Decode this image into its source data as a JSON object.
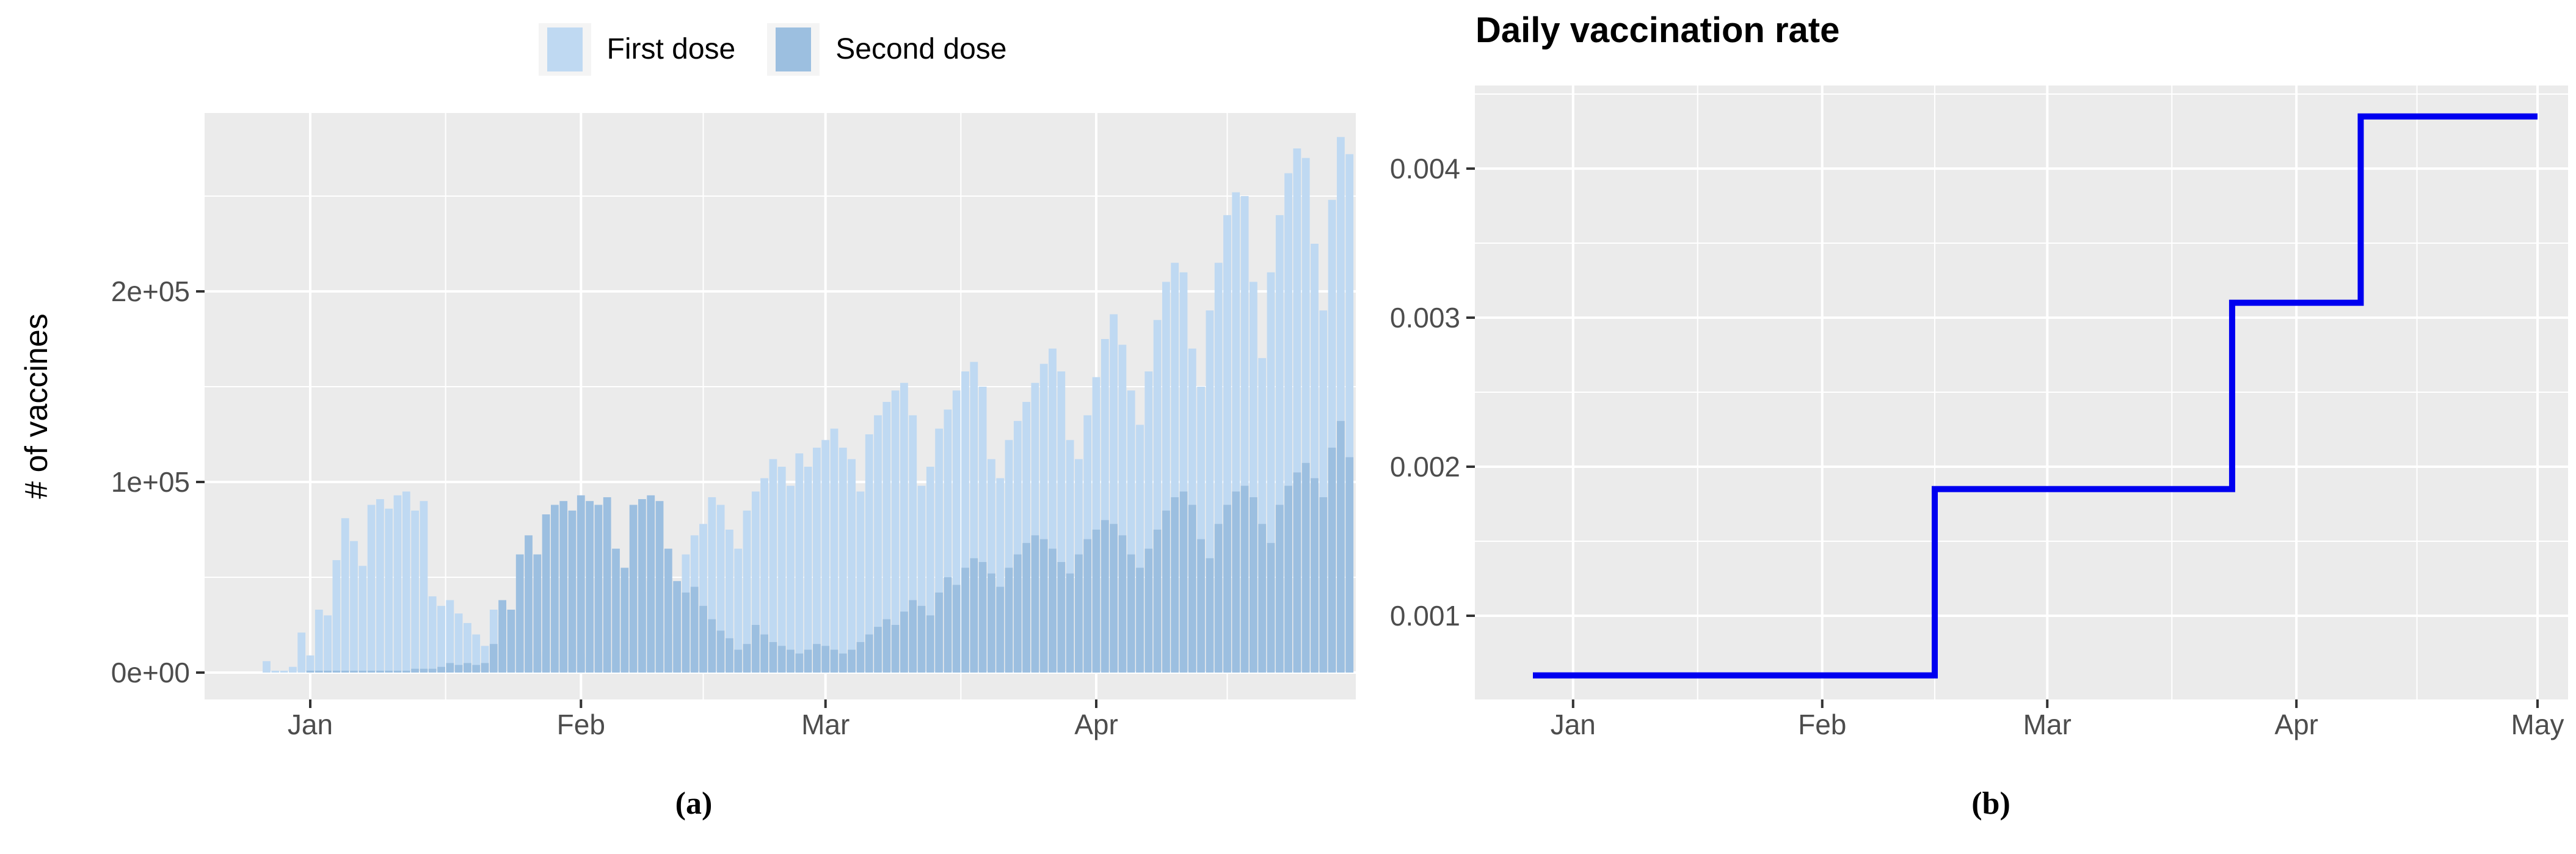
{
  "figure": {
    "caption_a": "(a)",
    "caption_b": "(b)"
  },
  "colors": {
    "first_dose": "#BFD9F2",
    "second_dose": "#9CBFE0",
    "rate_line": "#0000F0",
    "panel_bg": "#EBEBEB",
    "grid": "#FFFFFF",
    "axis_text": "#4D4D4D",
    "tick_mark": "#333333"
  },
  "chart_data": [
    {
      "type": "bar",
      "title": "",
      "xlabel": "",
      "ylabel": "# of vaccines",
      "x_start": "Dec 27",
      "bar_unit": "one bar per day",
      "legend_position": "top-center",
      "grid": true,
      "ylim": [
        0,
        293000
      ],
      "yticks": [
        {
          "label": "0e+00",
          "value": 0
        },
        {
          "label": "1e+05",
          "value": 100000
        },
        {
          "label": "2e+05",
          "value": 200000
        }
      ],
      "y_minor_values": [
        50000,
        150000,
        250000
      ],
      "xticks": [
        {
          "label": "Jan",
          "day": 5
        },
        {
          "label": "Feb",
          "day": 36
        },
        {
          "label": "Mar",
          "day": 64
        },
        {
          "label": "Apr",
          "day": 95
        }
      ],
      "x_minor_days": [
        20.5,
        50,
        79.5,
        110
      ],
      "legend": [
        {
          "label": "First dose",
          "color": "#BFD9F2"
        },
        {
          "label": "Second dose",
          "color": "#9CBFE0"
        }
      ],
      "series": [
        {
          "name": "First dose",
          "color": "#BFD9F2",
          "values": [
            6000,
            1000,
            1000,
            3000,
            21000,
            9000,
            33000,
            30000,
            59000,
            81000,
            69000,
            56000,
            88000,
            91000,
            86000,
            93000,
            95000,
            85000,
            90000,
            40000,
            35000,
            38000,
            31000,
            26000,
            20000,
            14000,
            33000,
            30000,
            22000,
            12000,
            10000,
            9000,
            11000,
            10000,
            12000,
            14000,
            10000,
            8000,
            12000,
            10000,
            8000,
            12000,
            15000,
            42000,
            48000,
            33000,
            20000,
            45000,
            62000,
            72000,
            78000,
            92000,
            88000,
            75000,
            65000,
            85000,
            95000,
            102000,
            112000,
            108000,
            98000,
            115000,
            108000,
            118000,
            122000,
            128000,
            118000,
            112000,
            95000,
            125000,
            135000,
            142000,
            148000,
            152000,
            135000,
            98000,
            108000,
            128000,
            138000,
            148000,
            158000,
            163000,
            150000,
            112000,
            102000,
            122000,
            132000,
            142000,
            152000,
            162000,
            170000,
            158000,
            122000,
            112000,
            135000,
            155000,
            175000,
            188000,
            172000,
            148000,
            130000,
            158000,
            185000,
            205000,
            215000,
            210000,
            170000,
            150000,
            190000,
            215000,
            240000,
            252000,
            250000,
            205000,
            165000,
            210000,
            240000,
            262000,
            275000,
            270000,
            225000,
            190000,
            248000,
            281000,
            272000
          ]
        },
        {
          "name": "Second dose",
          "color": "#9CBFE0",
          "values": [
            0,
            0,
            0,
            0,
            0,
            1000,
            1000,
            1000,
            1000,
            1000,
            1000,
            1000,
            1000,
            1000,
            1000,
            1000,
            1000,
            2000,
            2000,
            2000,
            3000,
            5000,
            4000,
            5000,
            4000,
            5000,
            15000,
            38000,
            33000,
            62000,
            72000,
            62000,
            83000,
            88000,
            90000,
            85000,
            93000,
            90000,
            88000,
            92000,
            65000,
            55000,
            88000,
            91000,
            93000,
            90000,
            65000,
            48000,
            42000,
            45000,
            35000,
            28000,
            22000,
            18000,
            12000,
            15000,
            25000,
            20000,
            16000,
            14000,
            12000,
            10000,
            12000,
            15000,
            14000,
            12000,
            10000,
            12000,
            16000,
            20000,
            24000,
            28000,
            25000,
            32000,
            38000,
            35000,
            30000,
            42000,
            50000,
            46000,
            55000,
            60000,
            58000,
            52000,
            45000,
            55000,
            62000,
            68000,
            72000,
            70000,
            65000,
            58000,
            52000,
            62000,
            70000,
            75000,
            80000,
            78000,
            72000,
            62000,
            55000,
            65000,
            75000,
            85000,
            92000,
            95000,
            88000,
            70000,
            60000,
            78000,
            88000,
            95000,
            98000,
            92000,
            78000,
            68000,
            88000,
            98000,
            105000,
            110000,
            102000,
            92000,
            118000,
            132000,
            113000
          ]
        }
      ]
    },
    {
      "type": "line",
      "line_style": "step",
      "title": "Daily vaccination rate",
      "xlabel": "",
      "ylabel": "",
      "x_start": "Dec 27",
      "grid": true,
      "ylim": [
        0.00044,
        0.00456
      ],
      "yticks": [
        {
          "label": "0.001",
          "value": 0.001
        },
        {
          "label": "0.002",
          "value": 0.002
        },
        {
          "label": "0.003",
          "value": 0.003
        },
        {
          "label": "0.004",
          "value": 0.004
        }
      ],
      "y_minor_values": [
        0.0015,
        0.0025,
        0.0035,
        0.0045
      ],
      "xticks": [
        {
          "label": "Jan",
          "day": 5
        },
        {
          "label": "Feb",
          "day": 36
        },
        {
          "label": "Mar",
          "day": 64
        },
        {
          "label": "Apr",
          "day": 95
        },
        {
          "label": "May",
          "day": 125
        }
      ],
      "x_minor_days": [
        20.5,
        50,
        79.5,
        110
      ],
      "color": "#0000F0",
      "steps": [
        {
          "start_day": 0,
          "end_day": 50,
          "start_label": "Dec 27",
          "end_label": "Feb 15",
          "rate": 0.0006
        },
        {
          "start_day": 50,
          "end_day": 87,
          "start_label": "Feb 15",
          "end_label": "Mar 24",
          "rate": 0.00185
        },
        {
          "start_day": 87,
          "end_day": 103,
          "start_label": "Mar 24",
          "end_label": "Apr 9",
          "rate": 0.0031
        },
        {
          "start_day": 103,
          "end_day": 125,
          "start_label": "Apr 9",
          "end_label": "May 1",
          "rate": 0.00435
        }
      ]
    }
  ]
}
